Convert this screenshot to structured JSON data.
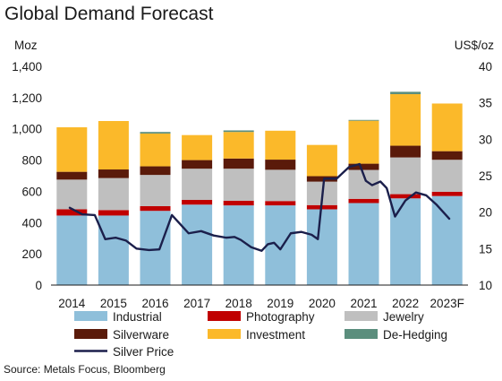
{
  "chart_data": {
    "type": "bar",
    "title": "Global Demand Forecast",
    "ylabel": "Moz",
    "y2label": "US$/oz",
    "ylim": [
      0,
      1400
    ],
    "y_ticks": [
      "0",
      "200",
      "400",
      "600",
      "800",
      "1,000",
      "1,200",
      "1,400"
    ],
    "y2lim": [
      10,
      40
    ],
    "y2_ticks": [
      "10",
      "15",
      "20",
      "25",
      "30",
      "35",
      "40"
    ],
    "categories": [
      "2014",
      "2015",
      "2016",
      "2017",
      "2018",
      "2019",
      "2020",
      "2021",
      "2022",
      "2023F"
    ],
    "stacked": true,
    "series": [
      {
        "name": "Industrial",
        "color": "#8fbfda",
        "values": [
          445,
          445,
          475,
          515,
          510,
          510,
          485,
          525,
          555,
          570
        ]
      },
      {
        "name": "Photography",
        "color": "#c00000",
        "values": [
          40,
          35,
          30,
          30,
          30,
          28,
          27,
          27,
          27,
          27
        ]
      },
      {
        "name": "Jewelry",
        "color": "#bfbfbf",
        "values": [
          190,
          205,
          200,
          200,
          205,
          200,
          150,
          185,
          235,
          205
        ]
      },
      {
        "name": "Silverware",
        "color": "#5a1a0a",
        "values": [
          50,
          55,
          55,
          55,
          65,
          65,
          35,
          40,
          75,
          55
        ]
      },
      {
        "name": "Investment",
        "color": "#fbb92a",
        "values": [
          285,
          310,
          210,
          160,
          170,
          185,
          200,
          275,
          330,
          305
        ]
      },
      {
        "name": "De-Hedging",
        "color": "#5b8e7d",
        "values": [
          0,
          0,
          10,
          0,
          10,
          0,
          0,
          5,
          15,
          0
        ]
      }
    ],
    "line": {
      "name": "Silver Price",
      "color": "#1b1f4b",
      "axis": "right",
      "x": [
        -0.05,
        0.25,
        0.55,
        0.8,
        1.05,
        1.3,
        1.55,
        1.85,
        2.1,
        2.4,
        2.8,
        3.1,
        3.4,
        3.7,
        3.9,
        4.05,
        4.3,
        4.55,
        4.7,
        4.85,
        5.0,
        5.25,
        5.5,
        5.75,
        5.9,
        6.05,
        6.35,
        6.65,
        6.9,
        7.05,
        7.2,
        7.4,
        7.55,
        7.75,
        8.0,
        8.25,
        8.5,
        8.75,
        9.05
      ],
      "y": [
        20.6,
        19.7,
        19.6,
        16.3,
        16.5,
        16.1,
        15.0,
        14.8,
        14.9,
        19.6,
        17.1,
        17.4,
        16.8,
        16.5,
        16.6,
        16.2,
        15.2,
        14.7,
        15.6,
        15.8,
        14.9,
        17.1,
        17.3,
        16.9,
        16.3,
        24.6,
        24.6,
        26.2,
        26.6,
        24.3,
        23.7,
        24.2,
        23.3,
        19.4,
        21.6,
        22.7,
        22.3,
        21.0,
        19.1
      ]
    },
    "legend": [
      "Industrial",
      "Photography",
      "Jewelry",
      "Silverware",
      "Investment",
      "De-Hedging",
      "Silver Price"
    ],
    "legend_position": "bottom",
    "grid": false,
    "source": "Source: Metals Focus, Bloomberg"
  }
}
